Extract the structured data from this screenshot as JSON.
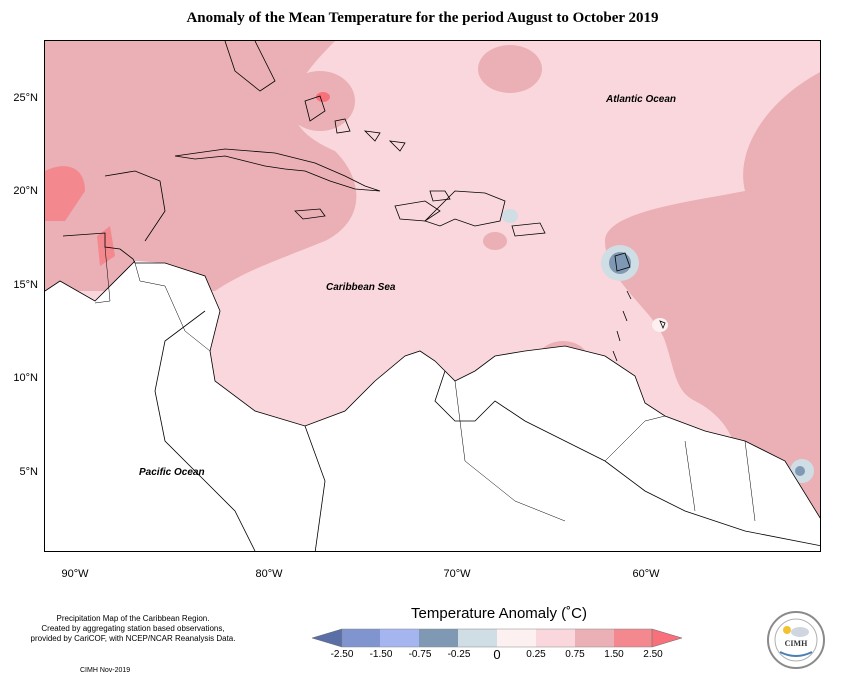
{
  "title": "Anomaly of the Mean Temperature for the period August to October 2019",
  "map": {
    "lat_labels": [
      "25°N",
      "20°N",
      "15°N",
      "10°N",
      "5°N"
    ],
    "lon_labels": [
      "90°W",
      "80°W",
      "70°W",
      "60°W"
    ],
    "ocean_labels": {
      "atlantic": "Atlantic Ocean",
      "caribbean": "Caribbean Sea",
      "pacific": "Pacific Ocean"
    }
  },
  "legend": {
    "title": "Temperature Anomaly (˚C)",
    "labels": [
      "-2.50",
      "-1.50",
      "-0.75",
      "-0.25",
      "0",
      "0.25",
      "0.75",
      "1.50",
      "2.50"
    ],
    "colors": {
      "c1": "#5a6fa8",
      "c2": "#8094cf",
      "c3": "#a5b5f0",
      "c4": "#7f98b3",
      "c5": "#cfdde4",
      "c6": "#fdf0f0",
      "c7": "#f9d7dc",
      "c8": "#eab0b5",
      "c9": "#f3888e",
      "c10": "#f7707a"
    }
  },
  "credits": {
    "line1": "Precipitation Map of the Caribbean Region.",
    "line2": "Created by aggregating station based observations,",
    "line3": "provided by CariCOF, with NCEP/NCAR Reanalysis Data.",
    "date": "CIMH Nov-2019"
  },
  "logo": {
    "label": "CIMH"
  }
}
